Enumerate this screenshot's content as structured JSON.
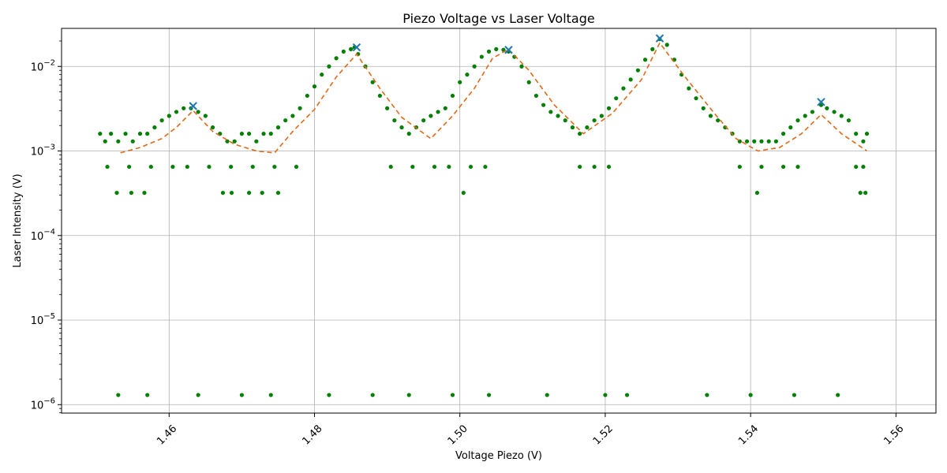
{
  "chart_data": {
    "type": "scatter",
    "title": "Piezo Voltage vs Laser Voltage",
    "xlabel": "Voltage Piezo (V)",
    "ylabel": "Laser Intensity (V)",
    "xlim": [
      1.4452,
      1.5655
    ],
    "ylim_log10": [
      -6.1,
      -1.55
    ],
    "y_scale": "log",
    "grid": true,
    "x_ticks": [
      1.46,
      1.48,
      1.5,
      1.52,
      1.54,
      1.56
    ],
    "x_tick_labels": [
      "1.46",
      "1.48",
      "1.50",
      "1.52",
      "1.54",
      "1.56"
    ],
    "x_tick_rotation": 45,
    "y_ticks_exp": [
      -6,
      -5,
      -4,
      -3,
      -2
    ],
    "colors": {
      "data": "#008000",
      "fit": "#e06a1a",
      "peaks": "#1f77b4"
    },
    "peaks": {
      "x": [
        1.4633,
        1.4858,
        1.5067,
        1.5275,
        1.5497
      ],
      "y": [
        0.0034,
        0.0168,
        0.0157,
        0.0215,
        0.0038
      ]
    },
    "fit": {
      "x": [
        1.4533,
        1.456,
        1.459,
        1.461,
        1.4633,
        1.466,
        1.469,
        1.472,
        1.4745,
        1.477,
        1.48,
        1.483,
        1.4858,
        1.489,
        1.492,
        1.496,
        1.499,
        1.502,
        1.5045,
        1.5067,
        1.5095,
        1.513,
        1.517,
        1.521,
        1.525,
        1.5275,
        1.531,
        1.535,
        1.538,
        1.541,
        1.544,
        1.547,
        1.5497,
        1.5525,
        1.556
      ],
      "y": [
        0.00095,
        0.0011,
        0.0014,
        0.0019,
        0.003,
        0.0017,
        0.0012,
        0.001,
        0.00095,
        0.0017,
        0.0031,
        0.0075,
        0.014,
        0.0055,
        0.0025,
        0.0014,
        0.0026,
        0.0055,
        0.0125,
        0.016,
        0.009,
        0.0035,
        0.0016,
        0.0028,
        0.007,
        0.019,
        0.0075,
        0.0028,
        0.0014,
        0.001,
        0.0011,
        0.0016,
        0.0027,
        0.0016,
        0.001
      ]
    },
    "scatter": {
      "x": [
        1.4505,
        1.4512,
        1.452,
        1.453,
        1.454,
        1.455,
        1.456,
        1.457,
        1.458,
        1.459,
        1.46,
        1.461,
        1.462,
        1.463,
        1.464,
        1.465,
        1.466,
        1.467,
        1.468,
        1.469,
        1.47,
        1.471,
        1.472,
        1.473,
        1.474,
        1.475,
        1.476,
        1.477,
        1.478,
        1.479,
        1.48,
        1.481,
        1.482,
        1.483,
        1.484,
        1.485,
        1.4855,
        1.486,
        1.487,
        1.488,
        1.489,
        1.49,
        1.491,
        1.492,
        1.493,
        1.494,
        1.495,
        1.496,
        1.497,
        1.498,
        1.499,
        1.5,
        1.501,
        1.502,
        1.503,
        1.504,
        1.505,
        1.506,
        1.5067,
        1.5075,
        1.5085,
        1.5095,
        1.5105,
        1.5115,
        1.5125,
        1.5135,
        1.5145,
        1.5155,
        1.5165,
        1.5175,
        1.5185,
        1.5195,
        1.5205,
        1.5215,
        1.5225,
        1.5235,
        1.5245,
        1.5255,
        1.5265,
        1.5275,
        1.5285,
        1.5295,
        1.5305,
        1.5315,
        1.5325,
        1.5335,
        1.5345,
        1.5355,
        1.5365,
        1.5375,
        1.5385,
        1.5395,
        1.5405,
        1.5415,
        1.5425,
        1.5435,
        1.5445,
        1.5455,
        1.5465,
        1.5475,
        1.5485,
        1.5497,
        1.5505,
        1.5515,
        1.5525,
        1.5535,
        1.5545,
        1.5555,
        1.556,
        1.4515,
        1.4545,
        1.4575,
        1.4605,
        1.4625,
        1.4655,
        1.4685,
        1.4715,
        1.4745,
        1.4775,
        1.4905,
        1.4935,
        1.4965,
        1.4985,
        1.5015,
        1.5035,
        1.5165,
        1.5185,
        1.5205,
        1.5385,
        1.5415,
        1.5445,
        1.5465,
        1.5545,
        1.5555,
        1.4528,
        1.4548,
        1.4566,
        1.4674,
        1.4686,
        1.471,
        1.4728,
        1.475,
        1.5005,
        1.5409,
        1.5551,
        1.5558,
        1.453,
        1.457,
        1.464,
        1.47,
        1.474,
        1.482,
        1.488,
        1.493,
        1.499,
        1.504,
        1.512,
        1.52,
        1.523,
        1.534,
        1.54,
        1.546,
        1.552
      ],
      "y": [
        0.0016,
        0.0013,
        0.0016,
        0.0013,
        0.0016,
        0.0013,
        0.0016,
        0.0016,
        0.0019,
        0.0023,
        0.0026,
        0.0029,
        0.0032,
        0.0032,
        0.0029,
        0.0026,
        0.0019,
        0.0016,
        0.0013,
        0.0013,
        0.0016,
        0.0016,
        0.0013,
        0.0016,
        0.0016,
        0.0019,
        0.0023,
        0.0026,
        0.0032,
        0.0045,
        0.0058,
        0.008,
        0.01,
        0.0125,
        0.015,
        0.016,
        0.0168,
        0.014,
        0.01,
        0.0065,
        0.0045,
        0.0032,
        0.0023,
        0.0019,
        0.0016,
        0.0019,
        0.0023,
        0.0026,
        0.0029,
        0.0032,
        0.0045,
        0.0065,
        0.008,
        0.01,
        0.013,
        0.015,
        0.016,
        0.0157,
        0.015,
        0.013,
        0.01,
        0.0065,
        0.0045,
        0.0035,
        0.0029,
        0.0026,
        0.0023,
        0.0019,
        0.0016,
        0.0019,
        0.0023,
        0.0026,
        0.0032,
        0.0042,
        0.0055,
        0.007,
        0.009,
        0.012,
        0.016,
        0.021,
        0.018,
        0.012,
        0.008,
        0.0055,
        0.0042,
        0.0032,
        0.0026,
        0.0023,
        0.0019,
        0.0016,
        0.0013,
        0.0013,
        0.0013,
        0.0013,
        0.0013,
        0.0013,
        0.0016,
        0.0019,
        0.0023,
        0.0026,
        0.0029,
        0.0035,
        0.0032,
        0.0029,
        0.0026,
        0.0023,
        0.0016,
        0.0013,
        0.0016,
        0.00065,
        0.00065,
        0.00065,
        0.00065,
        0.00065,
        0.00065,
        0.00065,
        0.00065,
        0.00065,
        0.00065,
        0.00065,
        0.00065,
        0.00065,
        0.00065,
        0.00065,
        0.00065,
        0.00065,
        0.00065,
        0.00065,
        0.00065,
        0.00065,
        0.00065,
        0.00065,
        0.00065,
        0.00065,
        0.00032,
        0.00032,
        0.00032,
        0.00032,
        0.00032,
        0.00032,
        0.00032,
        0.00032,
        0.00032,
        0.00032,
        0.00032,
        0.00032,
        1.3e-06,
        1.3e-06,
        1.3e-06,
        1.3e-06,
        1.3e-06,
        1.3e-06,
        1.3e-06,
        1.3e-06,
        1.3e-06,
        1.3e-06,
        1.3e-06,
        1.3e-06,
        1.3e-06,
        1.3e-06,
        1.3e-06,
        1.3e-06,
        1.3e-06
      ]
    }
  }
}
